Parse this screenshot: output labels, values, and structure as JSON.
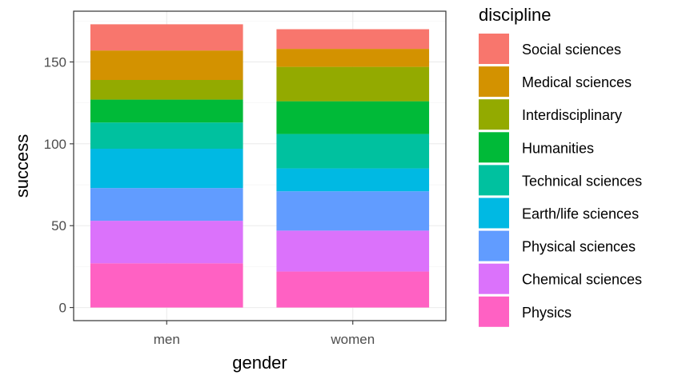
{
  "chart_data": {
    "type": "bar",
    "stacked": true,
    "categories": [
      "men",
      "women"
    ],
    "xlabel": "gender",
    "ylabel": "success",
    "ylim": [
      -8,
      181
    ],
    "yticks": [
      0,
      50,
      100,
      150
    ],
    "grid": true,
    "legend": {
      "title": "discipline",
      "position": "right"
    },
    "series": [
      {
        "name": "Physics",
        "color": "#FF61C3",
        "values": [
          27,
          22
        ]
      },
      {
        "name": "Chemical sciences",
        "color": "#DB72FB",
        "values": [
          26,
          25
        ]
      },
      {
        "name": "Physical sciences",
        "color": "#619CFF",
        "values": [
          20,
          24
        ]
      },
      {
        "name": "Earth/life sciences",
        "color": "#00B9E3",
        "values": [
          24,
          14
        ]
      },
      {
        "name": "Technical sciences",
        "color": "#00C19F",
        "values": [
          16,
          21
        ]
      },
      {
        "name": "Humanities",
        "color": "#00BA38",
        "values": [
          14,
          20
        ]
      },
      {
        "name": "Interdisciplinary",
        "color": "#93AA00",
        "values": [
          12,
          21
        ]
      },
      {
        "name": "Medical sciences",
        "color": "#D39200",
        "values": [
          18,
          11
        ]
      },
      {
        "name": "Social sciences",
        "color": "#F8766D",
        "values": [
          16,
          12
        ]
      }
    ]
  }
}
